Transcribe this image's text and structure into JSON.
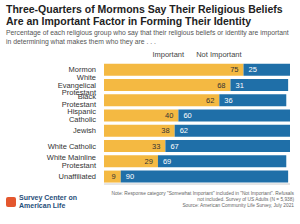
{
  "chart_data": {
    "type": "bar",
    "orientation": "horizontal",
    "stacked": true,
    "data_labels": true,
    "legend": "top",
    "tick_labels": "y",
    "title": "Three-Quarters of Mormons Say Their Religious Beliefs Are an Important Factor in Forming Their Identity",
    "subtitle": "Percentage of each religious group who say that their religious beliefs or identity are important in determining what makes them who they are . . .",
    "categories": [
      "Mormon",
      "White Evangelical Protestant",
      "Black Protestant",
      "Hispanic Catholic",
      "Jewish",
      "White Catholic",
      "White Mainline Protestant",
      "Unaffiliated"
    ],
    "series": [
      {
        "name": "Important",
        "color": "#f4b942",
        "values": [
          75,
          68,
          62,
          40,
          38,
          33,
          29,
          9
        ]
      },
      {
        "name": "Not Important",
        "color": "#1f6fa8",
        "values": [
          25,
          31,
          36,
          60,
          62,
          67,
          69,
          90
        ]
      }
    ],
    "xlim": [
      0,
      100
    ],
    "xticks": [
      0,
      100
    ],
    "note": "Note: Response category \"Somewhat Important\" included in \"Not Important\". Refusals not included. Survey of US Adults (N = 5,938)",
    "source": "Source: American Community Life Survey, July 2021",
    "logo": "Survey Center on American Life"
  }
}
